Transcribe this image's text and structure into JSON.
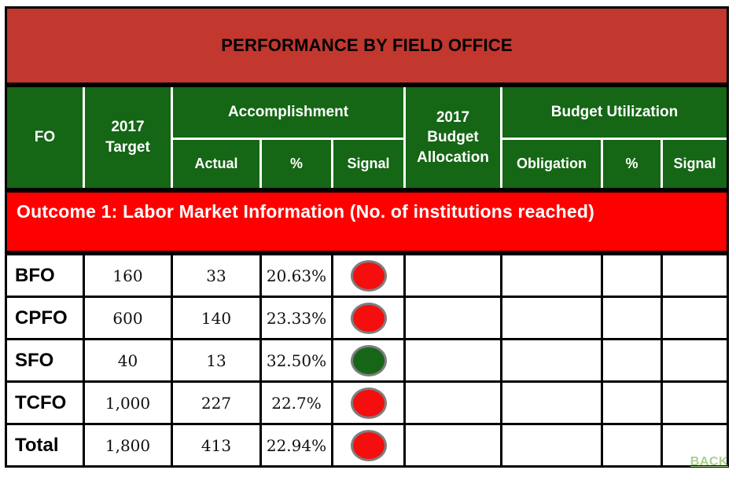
{
  "title": "PERFORMANCE BY FIELD OFFICE",
  "header": {
    "fo": "FO",
    "target": "2017\nTarget",
    "accomplishment": "Accomplishment",
    "actual": "Actual",
    "percent": "%",
    "signal": "Signal",
    "budget_allocation": "2017\nBudget\nAllocation",
    "budget_utilization": "Budget Utilization",
    "obligation": "Obligation",
    "util_percent": "%",
    "util_signal": "Signal"
  },
  "outcome_label": "Outcome 1: Labor Market Information (No. of institutions reached)",
  "rows": [
    {
      "fo": "BFO",
      "target": "160",
      "actual": "33",
      "percent": "20.63%",
      "signal": "red",
      "budget_allocation": "",
      "obligation": "",
      "util_percent": "",
      "util_signal": ""
    },
    {
      "fo": "CPFO",
      "target": "600",
      "actual": "140",
      "percent": "23.33%",
      "signal": "red",
      "budget_allocation": "",
      "obligation": "",
      "util_percent": "",
      "util_signal": ""
    },
    {
      "fo": "SFO",
      "target": "40",
      "actual": "13",
      "percent": "32.50%",
      "signal": "green",
      "budget_allocation": "",
      "obligation": "",
      "util_percent": "",
      "util_signal": ""
    },
    {
      "fo": "TCFO",
      "target": "1,000",
      "actual": "227",
      "percent": "22.7%",
      "signal": "red",
      "budget_allocation": "",
      "obligation": "",
      "util_percent": "",
      "util_signal": ""
    },
    {
      "fo": "Total",
      "target": "1,800",
      "actual": "413",
      "percent": "22.94%",
      "signal": "red",
      "budget_allocation": "",
      "obligation": "",
      "util_percent": "",
      "util_signal": ""
    }
  ],
  "back_label": "BACK",
  "colors": {
    "banner_red": "#C2372E",
    "header_green": "#156615",
    "outcome_red": "#FF0000",
    "signal_red": "#F60D0D",
    "signal_green": "#176617",
    "back_green": "#A9D18E"
  }
}
